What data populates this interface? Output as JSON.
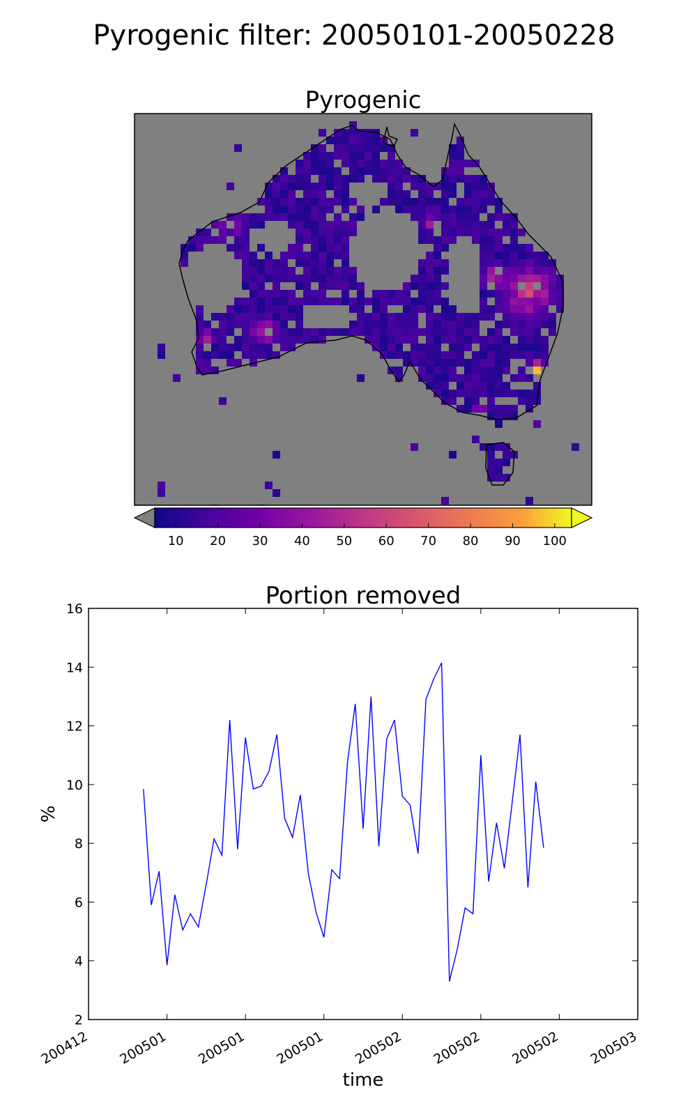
{
  "figure": {
    "suptitle": "Pyrogenic filter: 20050101-20050228"
  },
  "map_panel": {
    "title": "Pyrogenic",
    "background_color": "#808080",
    "colormap": "plasma",
    "colorbar": {
      "ticks": [
        "10",
        "20",
        "30",
        "40",
        "50",
        "60",
        "70",
        "80",
        "90",
        "100"
      ],
      "under_color": "#808080",
      "over_color": "#f0f921",
      "vmin": 5,
      "vmax": 104
    },
    "hotspots": [
      "east-coast Queensland",
      "north-east New South Wales",
      "south-west Western Australia"
    ]
  },
  "chart_data": {
    "type": "line",
    "title": "Portion removed",
    "xlabel": "time",
    "ylabel": "%",
    "ylim": [
      2,
      16
    ],
    "yticks": [
      2,
      4,
      6,
      8,
      10,
      12,
      14,
      16
    ],
    "xlim_days": [
      0,
      63
    ],
    "xticks": [
      {
        "label": "200412",
        "day": 0
      },
      {
        "label": "200501",
        "day": 10
      },
      {
        "label": "200501",
        "day": 20
      },
      {
        "label": "200501",
        "day": 30
      },
      {
        "label": "200502",
        "day": 40
      },
      {
        "label": "200502",
        "day": 50
      },
      {
        "label": "200502",
        "day": 60
      },
      {
        "label": "200503",
        "day": 70
      }
    ],
    "line_color": "#0000ff",
    "series": [
      {
        "x": [
          7,
          8,
          9,
          10,
          11,
          12,
          13,
          14,
          15,
          16,
          17,
          18,
          19,
          20,
          21,
          22,
          23,
          24,
          25,
          26,
          27,
          28,
          29,
          30,
          31,
          32,
          33,
          34,
          35,
          36,
          37,
          38,
          39,
          40,
          41,
          42,
          43,
          44,
          45,
          46,
          47,
          48,
          49,
          50,
          51,
          52,
          53,
          54,
          55,
          56,
          57,
          58
        ],
        "values": [
          9.85,
          5.9,
          7.05,
          3.85,
          6.25,
          5.05,
          5.6,
          5.15,
          6.6,
          8.15,
          7.6,
          12.2,
          7.8,
          11.6,
          9.85,
          9.95,
          10.45,
          11.7,
          8.85,
          8.2,
          9.65,
          7.0,
          5.65,
          4.8,
          7.1,
          6.8,
          10.75,
          12.75,
          8.5,
          13.0,
          7.9,
          11.55,
          12.2,
          9.6,
          9.3,
          7.65,
          12.9,
          13.6,
          14.15,
          3.3,
          4.4,
          5.8,
          5.6,
          11.0,
          6.7,
          8.7,
          7.15,
          9.4,
          11.7,
          6.5,
          10.1,
          7.85
        ]
      }
    ]
  }
}
